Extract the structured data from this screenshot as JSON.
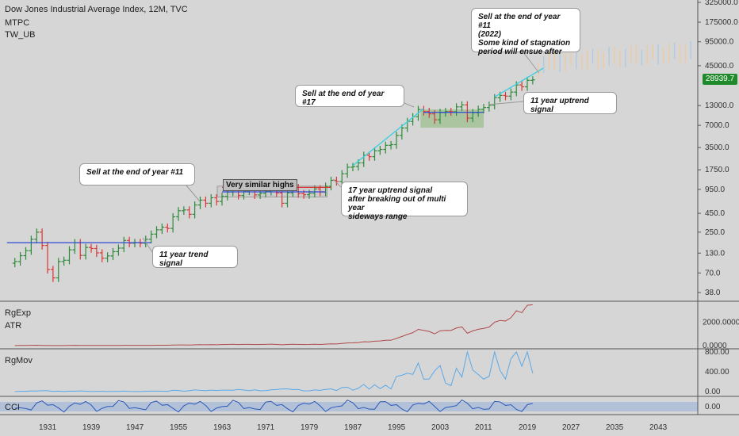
{
  "header": {
    "title": "Dow Jones Industrial Average Index, 12M, TVC",
    "indicator1": "MTPC",
    "indicator2": "TW_UB"
  },
  "price_label": "28939.7",
  "annotations": {
    "sell_11_left": "Sell at the end of year #11",
    "trend_signal_11": "11 year trend signal",
    "very_similar_highs": "Very similar highs",
    "uptrend_17": "17 year uptrend signal\nafter breaking out of multi year\nsideways range",
    "sell_17": "Sell at the end of year #17",
    "uptrend_11": "11 year uptrend signal",
    "sell_11_2022": "Sell at the end of year #11\n(2022)\nSome kind of stagnation\nperiod will ensue after"
  },
  "panels": {
    "rgexp": "RgExp",
    "atr": "ATR",
    "rgmov": "RgMov",
    "cci": "CCI"
  },
  "colors": {
    "up": "#2e8b3a",
    "down": "#d93636",
    "trend_line": "#2e46d6",
    "projection": "#f2c89a",
    "projection_alt": "#aac8e0",
    "atr_line": "#b04a4a",
    "rgmov_line": "#5aa8e8",
    "cci_line": "#2a5ab8",
    "highlight": "#9bbf8e"
  },
  "chart_data": [
    {
      "type": "candlestick",
      "title": "Dow Jones Industrial Average Index, 12M, TVC",
      "scale": "log",
      "y_ticks": [
        "325000.0",
        "175000.0",
        "95000.0",
        "45000.0",
        "13000.0",
        "7000.0",
        "3500.0",
        "1750.0",
        "950.0",
        "450.0",
        "250.0",
        "130.0",
        "70.0",
        "38.0"
      ],
      "x_ticks": [
        "1931",
        "1939",
        "1947",
        "1955",
        "1963",
        "1971",
        "1979",
        "1987",
        "1995",
        "2003",
        "2011",
        "2019",
        "2027",
        "2035",
        "2043"
      ],
      "last_price": 28939.7,
      "yearly_close": [
        {
          "year": 1925,
          "close": 100
        },
        {
          "year": 1926,
          "close": 120
        },
        {
          "year": 1927,
          "close": 140
        },
        {
          "year": 1928,
          "close": 200
        },
        {
          "year": 1929,
          "close": 250
        },
        {
          "year": 1930,
          "close": 165
        },
        {
          "year": 1931,
          "close": 78
        },
        {
          "year": 1932,
          "close": 60
        },
        {
          "year": 1933,
          "close": 100
        },
        {
          "year": 1934,
          "close": 104
        },
        {
          "year": 1935,
          "close": 144
        },
        {
          "year": 1936,
          "close": 180
        },
        {
          "year": 1937,
          "close": 121
        },
        {
          "year": 1938,
          "close": 155
        },
        {
          "year": 1939,
          "close": 150
        },
        {
          "year": 1940,
          "close": 131
        },
        {
          "year": 1941,
          "close": 111
        },
        {
          "year": 1942,
          "close": 119
        },
        {
          "year": 1943,
          "close": 136
        },
        {
          "year": 1944,
          "close": 152
        },
        {
          "year": 1945,
          "close": 193
        },
        {
          "year": 1946,
          "close": 177
        },
        {
          "year": 1947,
          "close": 181
        },
        {
          "year": 1948,
          "close": 177
        },
        {
          "year": 1949,
          "close": 200
        },
        {
          "year": 1950,
          "close": 235
        },
        {
          "year": 1951,
          "close": 269
        },
        {
          "year": 1952,
          "close": 292
        },
        {
          "year": 1953,
          "close": 281
        },
        {
          "year": 1954,
          "close": 404
        },
        {
          "year": 1955,
          "close": 488
        },
        {
          "year": 1956,
          "close": 500
        },
        {
          "year": 1957,
          "close": 436
        },
        {
          "year": 1958,
          "close": 584
        },
        {
          "year": 1959,
          "close": 679
        },
        {
          "year": 1960,
          "close": 616
        },
        {
          "year": 1961,
          "close": 731
        },
        {
          "year": 1962,
          "close": 652
        },
        {
          "year": 1963,
          "close": 763
        },
        {
          "year": 1964,
          "close": 874
        },
        {
          "year": 1965,
          "close": 969
        },
        {
          "year": 1966,
          "close": 786
        },
        {
          "year": 1967,
          "close": 905
        },
        {
          "year": 1968,
          "close": 944
        },
        {
          "year": 1969,
          "close": 800
        },
        {
          "year": 1970,
          "close": 839
        },
        {
          "year": 1971,
          "close": 890
        },
        {
          "year": 1972,
          "close": 1020
        },
        {
          "year": 1973,
          "close": 851
        },
        {
          "year": 1974,
          "close": 616
        },
        {
          "year": 1975,
          "close": 852
        },
        {
          "year": 1976,
          "close": 1005
        },
        {
          "year": 1977,
          "close": 831
        },
        {
          "year": 1978,
          "close": 805
        },
        {
          "year": 1979,
          "close": 839
        },
        {
          "year": 1980,
          "close": 964
        },
        {
          "year": 1981,
          "close": 875
        },
        {
          "year": 1982,
          "close": 1047
        },
        {
          "year": 1983,
          "close": 1259
        },
        {
          "year": 1984,
          "close": 1212
        },
        {
          "year": 1985,
          "close": 1547
        },
        {
          "year": 1986,
          "close": 1896
        },
        {
          "year": 1987,
          "close": 1939
        },
        {
          "year": 1988,
          "close": 2169
        },
        {
          "year": 1989,
          "close": 2753
        },
        {
          "year": 1990,
          "close": 2634
        },
        {
          "year": 1991,
          "close": 3169
        },
        {
          "year": 1992,
          "close": 3301
        },
        {
          "year": 1993,
          "close": 3754
        },
        {
          "year": 1994,
          "close": 3834
        },
        {
          "year": 1995,
          "close": 5117
        },
        {
          "year": 1996,
          "close": 6448
        },
        {
          "year": 1997,
          "close": 7908
        },
        {
          "year": 1998,
          "close": 9181
        },
        {
          "year": 1999,
          "close": 11497
        },
        {
          "year": 2000,
          "close": 10787
        },
        {
          "year": 2001,
          "close": 10021
        },
        {
          "year": 2002,
          "close": 8342
        },
        {
          "year": 2003,
          "close": 10454
        },
        {
          "year": 2004,
          "close": 10783
        },
        {
          "year": 2005,
          "close": 10718
        },
        {
          "year": 2006,
          "close": 12463
        },
        {
          "year": 2007,
          "close": 13265
        },
        {
          "year": 2008,
          "close": 8776
        },
        {
          "year": 2009,
          "close": 10428
        },
        {
          "year": 2010,
          "close": 11578
        },
        {
          "year": 2011,
          "close": 12218
        },
        {
          "year": 2012,
          "close": 13104
        },
        {
          "year": 2013,
          "close": 16577
        },
        {
          "year": 2014,
          "close": 17823
        },
        {
          "year": 2015,
          "close": 17425
        },
        {
          "year": 2016,
          "close": 19763
        },
        {
          "year": 2017,
          "close": 24719
        },
        {
          "year": 2018,
          "close": 23327
        },
        {
          "year": 2019,
          "close": 28538
        },
        {
          "year": 2020,
          "close": 28939.7
        }
      ]
    },
    {
      "type": "line",
      "title": "RgExp ATR",
      "y_ticks": [
        "2000.0000",
        "0.0000"
      ]
    },
    {
      "type": "line",
      "title": "RgMov",
      "y_ticks": [
        "800.00",
        "400.00",
        "0.00"
      ]
    },
    {
      "type": "line",
      "title": "CCI",
      "y_ticks": [
        "0.00"
      ]
    }
  ]
}
